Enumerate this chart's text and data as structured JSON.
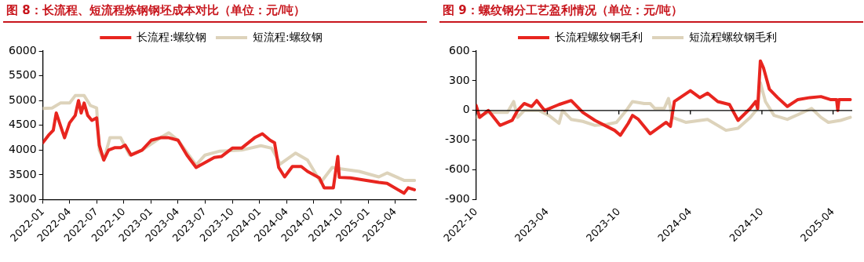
{
  "chart_data": [
    {
      "type": "line",
      "title": "图 8：长流程、短流程炼钢钢坯成本对比（单位：元/吨）",
      "legend": "top",
      "marker": "none",
      "grid": false,
      "xlim": [
        "2022-01-01",
        "2025-06-10"
      ],
      "xticks": [
        {
          "value": "2022-01",
          "label": "2022-01"
        },
        {
          "value": "2022-04",
          "label": "2022-04"
        },
        {
          "value": "2022-07",
          "label": "2022-07"
        },
        {
          "value": "2022-10",
          "label": "2022-10"
        },
        {
          "value": "2023-01",
          "label": "2023-01"
        },
        {
          "value": "2023-04",
          "label": "2023-04"
        },
        {
          "value": "2023-07",
          "label": "2023-07"
        },
        {
          "value": "2023-10",
          "label": "2023-10"
        },
        {
          "value": "2024-01",
          "label": "2024-01"
        },
        {
          "value": "2024-04",
          "label": "2024-04"
        },
        {
          "value": "2024-07",
          "label": "2024-07"
        },
        {
          "value": "2024-10",
          "label": "2024-10"
        },
        {
          "value": "2025-01",
          "label": "2025-01"
        },
        {
          "value": "2025-04",
          "label": "2025-04"
        }
      ],
      "ylim": [
        3000,
        6000
      ],
      "yticks": [
        3000,
        3500,
        4000,
        4500,
        5000,
        5500,
        6000
      ],
      "series": [
        {
          "name": "长流程:螺纹钢",
          "color": "#e8251f",
          "x": [
            "2022-01-01",
            "2022-01-20",
            "2022-02-05",
            "2022-02-15",
            "2022-03-01",
            "2022-03-15",
            "2022-04-01",
            "2022-04-20",
            "2022-05-01",
            "2022-05-10",
            "2022-05-20",
            "2022-06-01",
            "2022-06-15",
            "2022-07-01",
            "2022-07-10",
            "2022-07-25",
            "2022-08-10",
            "2022-09-01",
            "2022-09-20",
            "2022-10-05",
            "2022-10-25",
            "2022-12-01",
            "2023-01-01",
            "2023-02-01",
            "2023-03-01",
            "2023-04-01",
            "2023-05-01",
            "2023-06-01",
            "2023-07-01",
            "2023-08-01",
            "2023-08-25",
            "2023-10-01",
            "2023-11-01",
            "2023-12-15",
            "2024-01-10",
            "2024-02-05",
            "2024-02-20",
            "2024-03-05",
            "2024-03-25",
            "2024-04-20",
            "2024-05-20",
            "2024-06-10",
            "2024-07-20",
            "2024-08-05",
            "2024-09-05",
            "2024-09-20",
            "2024-09-25",
            "2024-11-01",
            "2025-02-05",
            "2025-03-05",
            "2025-05-01",
            "2025-05-15",
            "2025-06-05"
          ],
          "values": [
            4150,
            4300,
            4400,
            4750,
            4500,
            4250,
            4550,
            4700,
            5000,
            4750,
            4950,
            4700,
            4600,
            4650,
            4100,
            3800,
            4000,
            4050,
            4050,
            4100,
            3900,
            4000,
            4200,
            4250,
            4250,
            4200,
            3900,
            3650,
            3750,
            3850,
            3870,
            4040,
            4040,
            4250,
            4330,
            4200,
            4150,
            3650,
            3460,
            3670,
            3670,
            3570,
            3440,
            3240,
            3240,
            3870,
            3450,
            3440,
            3350,
            3330,
            3130,
            3240,
            3200
          ]
        },
        {
          "name": "短流程:螺纹钢",
          "color": "#ddd3bb",
          "x": [
            "2022-01-01",
            "2022-02-01",
            "2022-03-01",
            "2022-04-01",
            "2022-04-20",
            "2022-05-20",
            "2022-06-10",
            "2022-07-01",
            "2022-07-10",
            "2022-07-25",
            "2022-08-15",
            "2022-09-20",
            "2022-10-20",
            "2022-12-01",
            "2023-02-01",
            "2023-03-01",
            "2023-04-01",
            "2023-06-01",
            "2023-07-01",
            "2023-08-20",
            "2023-11-01",
            "2024-01-05",
            "2024-02-10",
            "2024-03-10",
            "2024-05-01",
            "2024-06-10",
            "2024-07-25",
            "2024-09-01",
            "2024-09-20",
            "2024-12-01",
            "2025-02-05",
            "2025-03-05",
            "2025-05-01",
            "2025-06-05"
          ],
          "values": [
            4840,
            4850,
            4950,
            4950,
            5100,
            5100,
            4900,
            4850,
            4000,
            3800,
            4250,
            4250,
            3900,
            4000,
            4250,
            4350,
            4200,
            3700,
            3900,
            3980,
            4000,
            4090,
            4040,
            3720,
            3940,
            3800,
            3350,
            3650,
            3630,
            3570,
            3460,
            3540,
            3390,
            3390
          ]
        }
      ]
    },
    {
      "type": "line",
      "title": "图 9：螺纹钢分工艺盈利情况（单位：元/吨）",
      "legend": "top",
      "marker": "none",
      "grid": false,
      "xlim": [
        "2022-10-01",
        "2025-05-20"
      ],
      "xticks": [
        {
          "value": "2022-10",
          "label": "2022-10"
        },
        {
          "value": "2023-04",
          "label": "2023-04"
        },
        {
          "value": "2023-10",
          "label": "2023-10"
        },
        {
          "value": "2024-04",
          "label": "2024-04"
        },
        {
          "value": "2024-10",
          "label": "2024-10"
        },
        {
          "value": "2025-04",
          "label": "2025-04"
        }
      ],
      "ylim": [
        -900,
        600
      ],
      "yticks": [
        -900,
        -600,
        -300,
        0,
        300,
        600
      ],
      "ref_lines": [
        {
          "axis": "y",
          "value": 0,
          "color": "#000000"
        }
      ],
      "series": [
        {
          "name": "长流程螺纹钢毛利",
          "color": "#e8251f",
          "x": [
            "2022-10-01",
            "2022-10-10",
            "2022-11-01",
            "2022-12-01",
            "2023-01-01",
            "2023-01-15",
            "2023-02-01",
            "2023-02-20",
            "2023-03-05",
            "2023-03-25",
            "2023-05-01",
            "2023-06-01",
            "2023-07-01",
            "2023-08-01",
            "2023-09-20",
            "2023-10-05",
            "2023-10-25",
            "2023-11-05",
            "2023-11-20",
            "2023-12-20",
            "2024-01-30",
            "2024-02-10",
            "2024-02-20",
            "2024-04-01",
            "2024-04-25",
            "2024-05-15",
            "2024-06-10",
            "2024-07-10",
            "2024-08-01",
            "2024-09-01",
            "2024-09-15",
            "2024-09-20",
            "2024-09-27",
            "2024-10-05",
            "2024-10-20",
            "2024-11-10",
            "2024-12-05",
            "2025-01-01",
            "2025-02-01",
            "2025-03-01",
            "2025-03-25",
            "2025-04-10",
            "2025-04-13",
            "2025-04-16",
            "2025-05-15"
          ],
          "values": [
            50,
            -70,
            0,
            -150,
            -100,
            0,
            70,
            40,
            100,
            0,
            60,
            100,
            -20,
            -100,
            -200,
            -250,
            -130,
            -50,
            -90,
            -235,
            -120,
            -160,
            90,
            200,
            130,
            175,
            90,
            60,
            -100,
            20,
            90,
            20,
            500,
            430,
            215,
            130,
            40,
            110,
            130,
            140,
            110,
            110,
            0,
            110,
            110
          ]
        },
        {
          "name": "短流程螺纹钢毛利",
          "color": "#ddd3bb",
          "x": [
            "2022-10-01",
            "2022-11-01",
            "2022-12-20",
            "2023-01-05",
            "2023-01-15",
            "2023-02-01",
            "2023-03-10",
            "2023-04-05",
            "2023-05-01",
            "2023-05-10",
            "2023-06-01",
            "2023-07-01",
            "2023-08-01",
            "2023-09-01",
            "2023-09-25",
            "2023-10-20",
            "2023-11-05",
            "2023-12-05",
            "2023-12-20",
            "2024-01-01",
            "2024-01-25",
            "2024-02-05",
            "2024-02-15",
            "2024-03-20",
            "2024-05-15",
            "2024-07-01",
            "2024-08-01",
            "2024-09-01",
            "2024-09-20",
            "2024-09-27",
            "2024-10-10",
            "2024-11-01",
            "2024-12-05",
            "2025-02-05",
            "2025-03-01",
            "2025-03-20",
            "2025-04-20",
            "2025-05-15"
          ],
          "values": [
            -70,
            -20,
            -20,
            90,
            -70,
            0,
            0,
            -50,
            -130,
            0,
            -90,
            -110,
            -150,
            -140,
            -120,
            0,
            90,
            70,
            70,
            20,
            20,
            120,
            -70,
            -120,
            -90,
            -200,
            -180,
            -70,
            20,
            280,
            90,
            -50,
            -90,
            20,
            -70,
            -120,
            -100,
            -70
          ]
        }
      ]
    }
  ]
}
